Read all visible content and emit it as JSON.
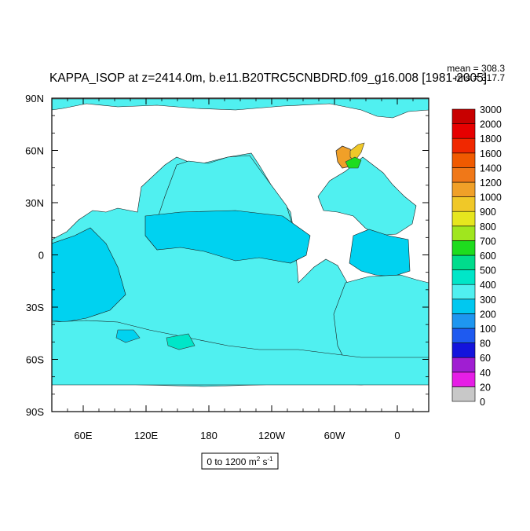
{
  "chart_data": {
    "type": "heatmap",
    "title": "KAPPA_ISOP at z=2414.0m, b.e11.B20TRC5CNBDRD.f09_g16.008 [1981-2005]",
    "stats": {
      "mean": "mean = 308.3",
      "rms": "rms = 317.7"
    },
    "projection": "cylindrical equidistant, centered near 150W",
    "lon_ticks": [
      {
        "lon": 60,
        "label": "60E"
      },
      {
        "lon": 120,
        "label": "120E"
      },
      {
        "lon": 180,
        "label": "180"
      },
      {
        "lon": -120,
        "label": "120W"
      },
      {
        "lon": -60,
        "label": "60W"
      },
      {
        "lon": 0,
        "label": "0"
      }
    ],
    "lat_ticks": [
      {
        "lat": 90,
        "label": "90N"
      },
      {
        "lat": 60,
        "label": "60N"
      },
      {
        "lat": 30,
        "label": "30N"
      },
      {
        "lat": 0,
        "label": "0"
      },
      {
        "lat": -30,
        "label": "30S"
      },
      {
        "lat": -60,
        "label": "60S"
      },
      {
        "lat": -90,
        "label": "90S"
      }
    ],
    "xlim": [
      30,
      390
    ],
    "ylim": [
      -90,
      90
    ],
    "colorbar": {
      "labels": [
        "0",
        "20",
        "40",
        "60",
        "80",
        "100",
        "200",
        "300",
        "400",
        "500",
        "600",
        "700",
        "800",
        "900",
        "1000",
        "1200",
        "1400",
        "1600",
        "1800",
        "2000",
        "3000"
      ],
      "colors": [
        "#c8c8c8",
        "#e61ee6",
        "#a01ed2",
        "#1414dc",
        "#1e5af0",
        "#1e96f0",
        "#00c8f0",
        "#50f0f0",
        "#00e6c8",
        "#00dc8c",
        "#1edc1e",
        "#a0e61e",
        "#e6e61e",
        "#f0c828",
        "#f0a028",
        "#f07818",
        "#f05a00",
        "#f02800",
        "#e60000",
        "#c80000"
      ]
    },
    "range_note": "0 to 1200 m",
    "units_sup": "2",
    "units_tail": " s",
    "units_exp": "-1",
    "dominant_value_range": [
      200,
      400
    ],
    "grid": false
  }
}
